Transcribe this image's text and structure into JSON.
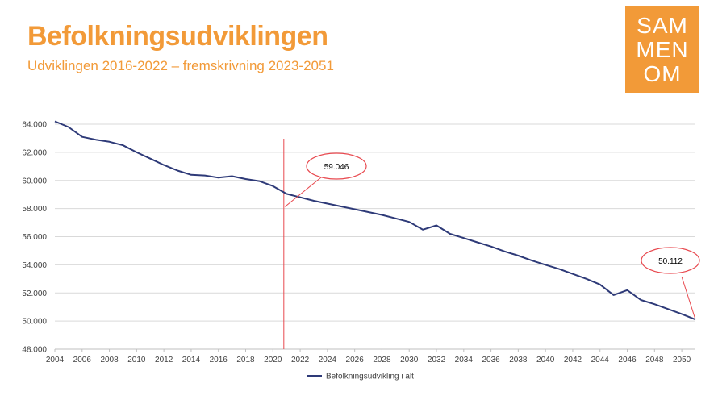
{
  "header": {
    "title": "Befolkningsudviklingen",
    "subtitle": "Udviklingen 2016-2022 – fremskrivning 2023-2051"
  },
  "logo": {
    "lines": [
      "SAM",
      "MEN",
      "OM"
    ]
  },
  "colors": {
    "accent": "#f29a38",
    "series": "#2e3a78",
    "marker": "#e8494f",
    "grid": "#d9d9d9"
  },
  "chart_data": {
    "type": "line",
    "title": "",
    "xlabel": "",
    "ylabel": "",
    "xlim": [
      2004,
      2051
    ],
    "ylim": [
      48000,
      64000
    ],
    "grid": true,
    "legend_position": "bottom",
    "x_ticks": [
      "2004",
      "2006",
      "2008",
      "2010",
      "2012",
      "2014",
      "2016",
      "2018",
      "2020",
      "2022",
      "2024",
      "2026",
      "2028",
      "2030",
      "2032",
      "2034",
      "2036",
      "2038",
      "2040",
      "2042",
      "2044",
      "2046",
      "2048",
      "2050"
    ],
    "y_ticks": [
      "48.000",
      "50.000",
      "52.000",
      "54.000",
      "56.000",
      "58.000",
      "60.000",
      "62.000",
      "64.000"
    ],
    "series": [
      {
        "name": "Befolkningsudvikling i alt",
        "x": [
          2004,
          2005,
          2006,
          2007,
          2008,
          2009,
          2010,
          2011,
          2012,
          2013,
          2014,
          2015,
          2016,
          2017,
          2018,
          2019,
          2020,
          2021,
          2022,
          2023,
          2024,
          2025,
          2026,
          2027,
          2028,
          2029,
          2030,
          2031,
          2032,
          2033,
          2034,
          2035,
          2036,
          2037,
          2038,
          2039,
          2040,
          2041,
          2042,
          2043,
          2044,
          2045,
          2046,
          2047,
          2048,
          2049,
          2050,
          2051
        ],
        "values": [
          64200,
          63800,
          63100,
          62900,
          62750,
          62500,
          62000,
          61550,
          61100,
          60700,
          60400,
          60350,
          60200,
          60300,
          60100,
          59950,
          59600,
          59046,
          58800,
          58550,
          58350,
          58150,
          57950,
          57750,
          57550,
          57300,
          57050,
          56500,
          56800,
          56200,
          55900,
          55600,
          55300,
          54950,
          54650,
          54300,
          54000,
          53700,
          53350,
          53000,
          52600,
          51850,
          52200,
          51500,
          51200,
          50850,
          50500,
          50112
        ]
      }
    ],
    "annotations": [
      {
        "label": "59.046",
        "x": 2021,
        "y": 59046
      },
      {
        "label": "50.112",
        "x": 2051,
        "y": 50112
      }
    ],
    "reference_line_x": 2020.8
  }
}
